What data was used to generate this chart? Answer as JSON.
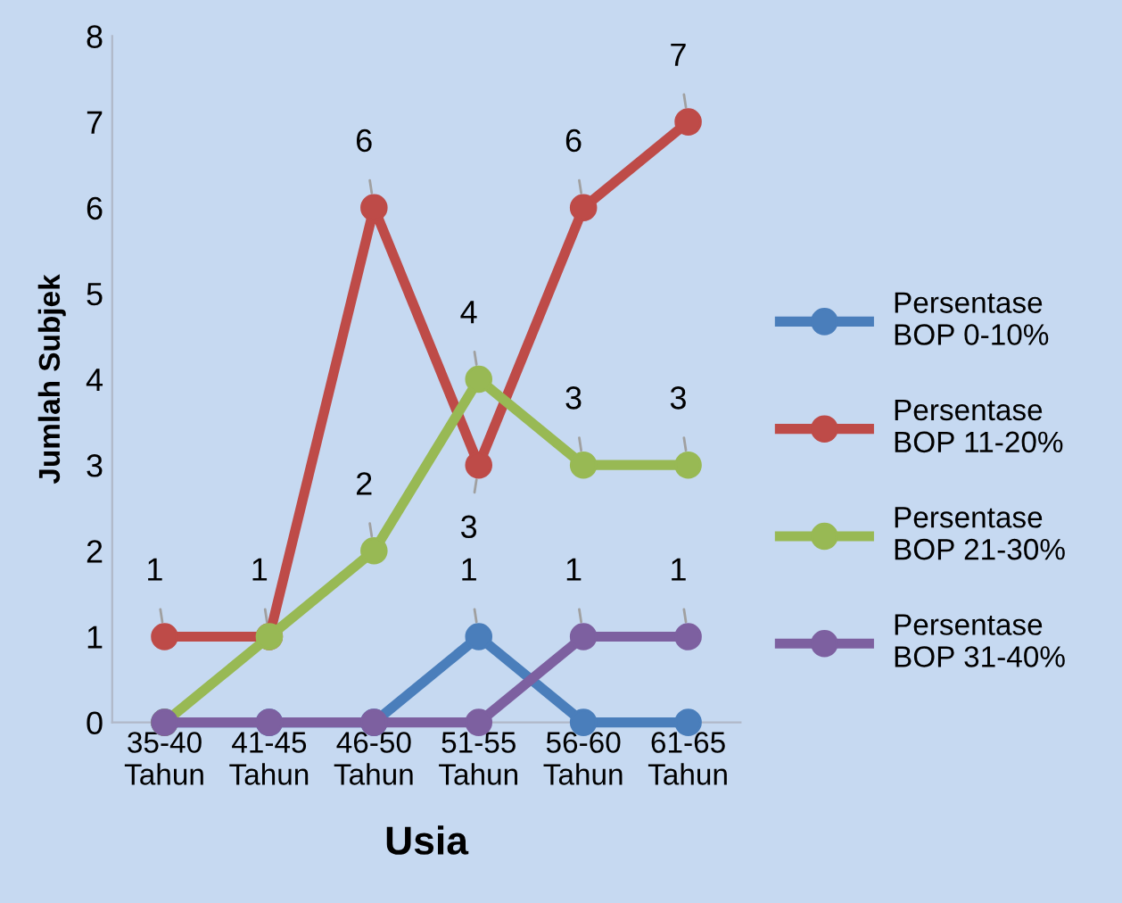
{
  "chart_data": {
    "type": "line",
    "xlabel": "Usia",
    "ylabel": "Jumlah Subjek",
    "categories": [
      "35-40 Tahun",
      "41-45 Tahun",
      "46-50 Tahun",
      "51-55 Tahun",
      "56-60 Tahun",
      "61-65 Tahun"
    ],
    "ylim": [
      0,
      8
    ],
    "yticks": [
      0,
      1,
      2,
      3,
      4,
      5,
      6,
      7,
      8
    ],
    "grid": false,
    "legend": "right",
    "marker": "circle",
    "line_style": "solid",
    "series": [
      {
        "name": "Persentase BOP 0-10%",
        "color": "#4a7ebb",
        "values": [
          0,
          0,
          0,
          1,
          0,
          0
        ],
        "value_labels": [
          null,
          null,
          null,
          "1",
          null,
          null
        ]
      },
      {
        "name": "Persentase BOP 11-20%",
        "color": "#be4b48",
        "values": [
          1,
          1,
          6,
          3,
          6,
          7
        ],
        "value_labels": [
          "1",
          "1",
          "6",
          "3",
          "6",
          "7"
        ]
      },
      {
        "name": "Persentase BOP 21-30%",
        "color": "#98b954",
        "values": [
          0,
          1,
          2,
          4,
          3,
          3
        ],
        "value_labels": [
          null,
          null,
          "2",
          "4",
          "3",
          "3"
        ]
      },
      {
        "name": "Persentase BOP 31-40%",
        "color": "#7d60a0",
        "values": [
          0,
          0,
          0,
          0,
          1,
          1
        ],
        "value_labels": [
          null,
          null,
          null,
          null,
          "1",
          "1"
        ]
      }
    ]
  }
}
